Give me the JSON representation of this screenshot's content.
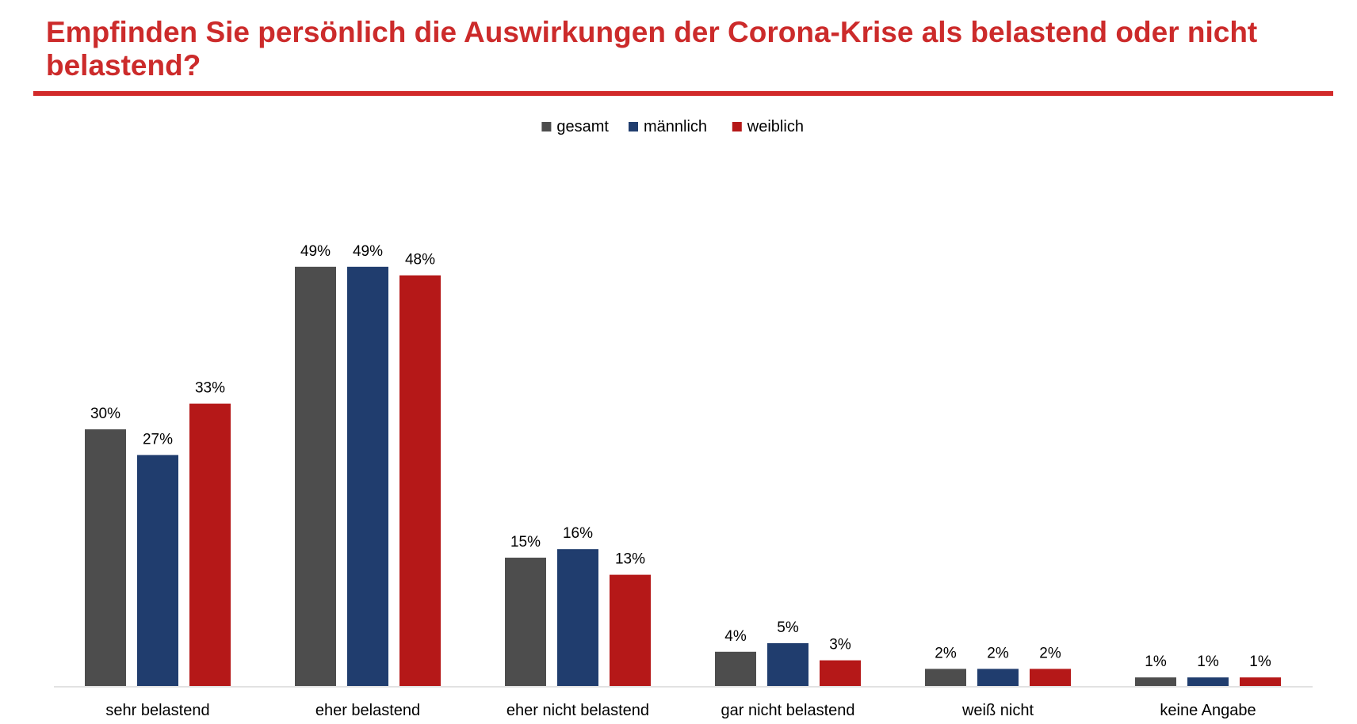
{
  "header": {
    "title": "Empfinden Sie persönlich die Auswirkungen der Corona-Krise als belastend oder nicht belastend?",
    "accent_color": "#cc2b2b"
  },
  "chart_data": {
    "type": "bar",
    "title": "Empfinden Sie persönlich die Auswirkungen der Corona-Krise als belastend oder nicht belastend?",
    "xlabel": "",
    "ylabel": "",
    "ylim": [
      0,
      60
    ],
    "grid": false,
    "legend_position": "top-center",
    "value_suffix": "%",
    "categories": [
      "sehr belastend",
      "eher belastend",
      "eher nicht belastend",
      "gar nicht belastend",
      "weiß nicht",
      "keine Angabe"
    ],
    "series": [
      {
        "name": "gesamt",
        "color": "#4d4d4d",
        "values": [
          30,
          49,
          15,
          4,
          2,
          1
        ]
      },
      {
        "name": "männlich",
        "color": "#203d6e",
        "values": [
          27,
          49,
          16,
          5,
          2,
          1
        ]
      },
      {
        "name": "weiblich",
        "color": "#b51818",
        "values": [
          33,
          48,
          13,
          3,
          2,
          1
        ]
      }
    ]
  }
}
